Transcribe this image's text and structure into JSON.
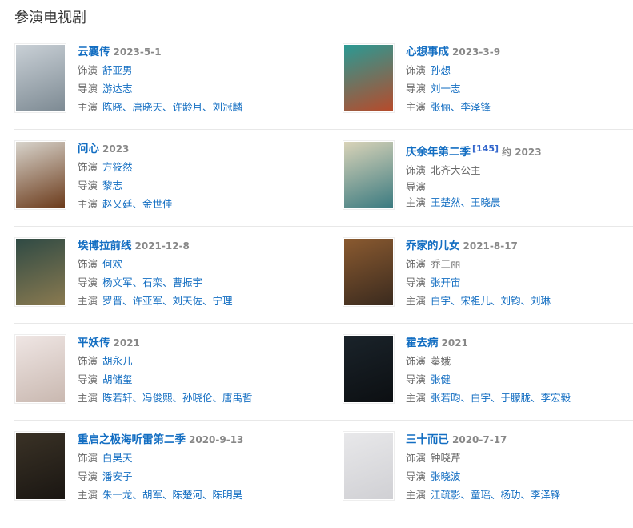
{
  "section_title": "参演电视剧",
  "labels": {
    "role": "饰演",
    "director": "导演",
    "cast": "主演"
  },
  "items": [
    {
      "title": "云襄传",
      "date": "2023-5-1",
      "role": "舒亚男",
      "role_link": true,
      "director": "游达志",
      "cast": "陈晓、唐晓天、许龄月、刘冠麟",
      "poster": [
        "#c9d0d6",
        "#7d8a93"
      ]
    },
    {
      "title": "心想事成",
      "date": "2023-3-9",
      "role": "孙想",
      "role_link": true,
      "director": "刘一志",
      "cast": "张俪、李泽锋",
      "poster": [
        "#2a9a94",
        "#b84a2a"
      ]
    },
    {
      "title": "问心",
      "date": "2023",
      "role": "方筱然",
      "role_link": true,
      "director": "黎志",
      "cast": "赵又廷、金世佳",
      "poster": [
        "#d8d4cc",
        "#6b3a1a"
      ]
    },
    {
      "title": "庆余年第二季",
      "ref": "[145]",
      "date": "约 2023",
      "role": "北齐大公主",
      "role_link": false,
      "director": "",
      "cast": "王楚然、王晓晨",
      "poster": [
        "#d9d3b8",
        "#3a7a80"
      ]
    },
    {
      "title": "埃博拉前线",
      "date": "2021-12-8",
      "role": "何欢",
      "role_link": true,
      "director": "杨文军、石栾、曹振宇",
      "cast": "罗晋、许亚军、刘天佐、宁理",
      "poster": [
        "#2f4a44",
        "#8a7a50"
      ]
    },
    {
      "title": "乔家的儿女",
      "date": "2021-8-17",
      "role": "乔三丽",
      "role_link": false,
      "director": "张开宙",
      "cast": "白宇、宋祖儿、刘钧、刘琳",
      "poster": [
        "#8a5a30",
        "#3a2a1e"
      ]
    },
    {
      "title": "平妖传",
      "date": "2021",
      "role": "胡永儿",
      "role_link": true,
      "director": "胡储玺",
      "cast": "陈若轩、冯俊熙、孙晓伦、唐禹哲",
      "poster": [
        "#efe6e4",
        "#c9b8b0"
      ]
    },
    {
      "title": "霍去病",
      "date": "2021",
      "role": "蓁娥",
      "role_link": false,
      "director": "张健",
      "cast": "张若昀、白宇、于朦胧、李宏毅",
      "poster": [
        "#1a232a",
        "#0c0f12"
      ]
    },
    {
      "title": "重启之极海听雷第二季",
      "date": "2020-9-13",
      "role": "白昊天",
      "role_link": true,
      "director": "潘安子",
      "cast": "朱一龙、胡军、陈楚河、陈明昊",
      "poster": [
        "#3a3226",
        "#1a1612"
      ]
    },
    {
      "title": "三十而已",
      "date": "2020-7-17",
      "role": "钟晓芹",
      "role_link": false,
      "director": "张晓波",
      "cast": "江疏影、童瑶、杨玏、李泽锋",
      "poster": [
        "#e8e8ea",
        "#d0d0d4"
      ]
    }
  ]
}
